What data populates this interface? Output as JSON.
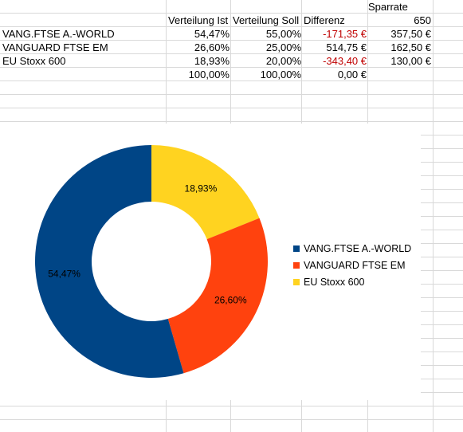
{
  "sheet": {
    "sparrate_label": "Sparrate",
    "sparrate_value": "650",
    "headers": {
      "ist": "Verteilung Ist",
      "soll": "Verteilung Soll",
      "diff": "Differenz"
    },
    "rows": [
      {
        "name": "VANG.FTSE A.-WORLD",
        "ist": "54,47%",
        "soll": "55,00%",
        "diff": "-171,35 €",
        "rate": "357,50 €"
      },
      {
        "name": "VANGUARD FTSE EM",
        "ist": "26,60%",
        "soll": "25,00%",
        "diff": "514,75 €",
        "rate": "162,50 €"
      },
      {
        "name": "EU Stoxx 600",
        "ist": "18,93%",
        "soll": "20,00%",
        "diff": "-343,40 €",
        "rate": "130,00 €"
      }
    ],
    "totals": {
      "ist": "100,00%",
      "soll": "100,00%",
      "diff": "0,00 €"
    }
  },
  "chart_data": {
    "type": "pie",
    "variant": "donut",
    "categories": [
      "VANG.FTSE A.-WORLD",
      "VANGUARD FTSE EM",
      "EU Stoxx 600"
    ],
    "values": [
      54.47,
      26.6,
      18.93
    ],
    "data_labels": [
      "54,47%",
      "26,60%",
      "18,93%"
    ],
    "colors": [
      "#004586",
      "#ff420e",
      "#ffd320"
    ],
    "start_angle": "top, clockwise from EU Stoxx 600",
    "legend": "right",
    "title": ""
  }
}
